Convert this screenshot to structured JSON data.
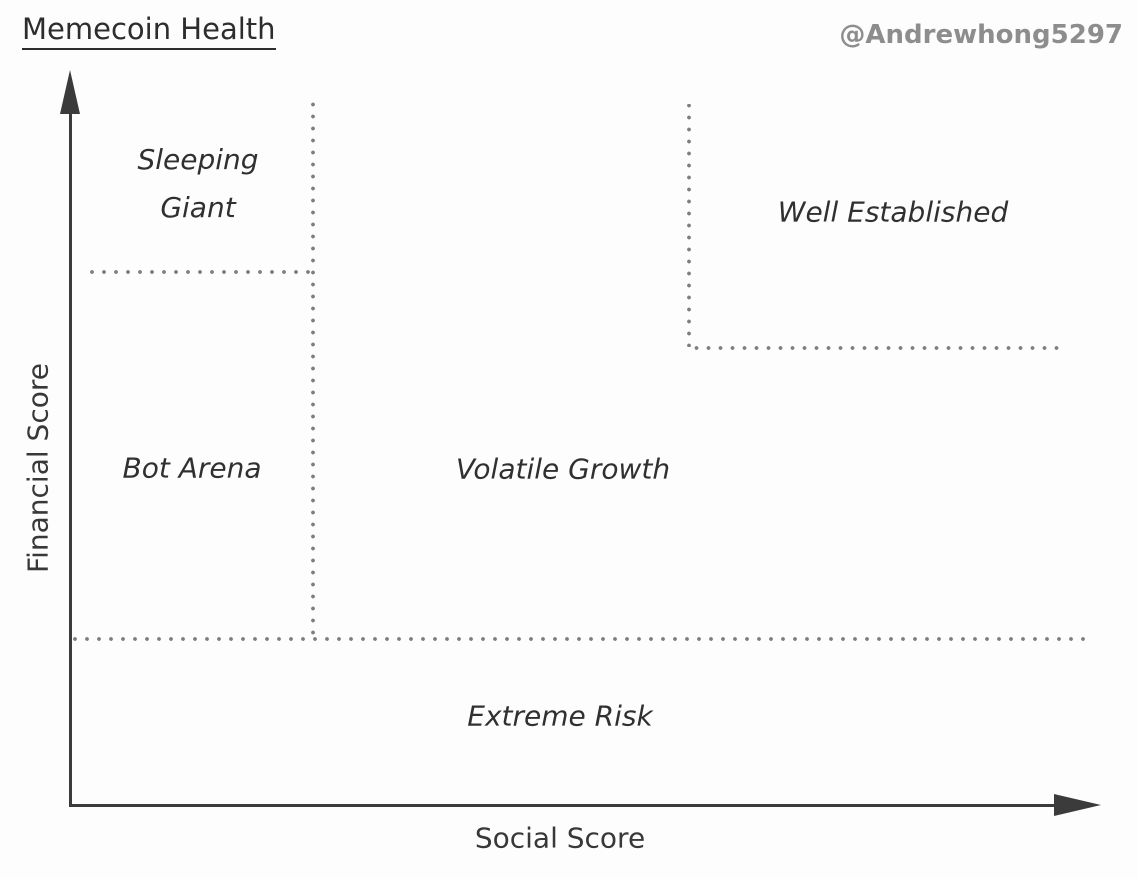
{
  "title": "Memecoin Health",
  "attribution": "@Andrewhong5297",
  "axes": {
    "y_label": "Financial Score",
    "x_label": "Social Score"
  },
  "regions": {
    "sleeping_giant": {
      "label": "Sleeping Giant"
    },
    "well_established": {
      "label": "Well Established"
    },
    "bot_arena": {
      "label": "Bot Arena"
    },
    "volatile_growth": {
      "label": "Volatile Growth"
    },
    "extreme_risk": {
      "label": "Extreme Risk"
    }
  },
  "colors": {
    "background": "#fdfdfd",
    "text": "#2d2d2d",
    "attribution_gray": "#8d8d8d",
    "axis": "#3b3b3b",
    "dotted_line": "#7e7e7e"
  }
}
